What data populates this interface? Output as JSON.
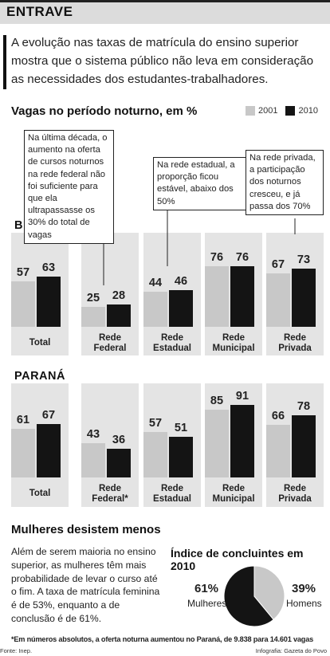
{
  "header": {
    "title": "ENTRAVE"
  },
  "intro": "A evolução nas taxas de matrícula do ensino superior mostra que o sistema público não leva em consideração as necessidades dos estudantes-trabalhadores.",
  "chart_data": {
    "type": "bar",
    "title": "Vagas no período noturno, em %",
    "legend": [
      "2001",
      "2010"
    ],
    "colors": {
      "2001": "#c8c8c8",
      "2010": "#141414"
    },
    "panels": [
      {
        "label": "BRASIL",
        "categories": [
          "Total",
          "Rede Federal",
          "Rede Estadual",
          "Rede Municipal",
          "Rede Privada"
        ],
        "series": [
          {
            "name": "2001",
            "values": [
              57,
              25,
              44,
              76,
              67
            ]
          },
          {
            "name": "2010",
            "values": [
              63,
              28,
              46,
              76,
              73
            ]
          }
        ]
      },
      {
        "label": "PARANÁ",
        "categories": [
          "Total",
          "Rede Federal*",
          "Rede Estadual",
          "Rede Municipal",
          "Rede Privada"
        ],
        "series": [
          {
            "name": "2001",
            "values": [
              61,
              43,
              57,
              85,
              66
            ]
          },
          {
            "name": "2010",
            "values": [
              67,
              36,
              51,
              91,
              78
            ]
          }
        ]
      }
    ],
    "annotations": [
      "Na última década, o aumento na oferta de cursos noturnos na rede federal não foi suficiente para que ela ultrapassasse os 30% do total de vagas",
      "Na rede estadual, a proporção ficou estável, abaixo dos 50%",
      "Na rede privada, a participação dos noturnos cresceu, e já passa dos 70%"
    ]
  },
  "women": {
    "title": "Mulheres desistem menos",
    "text": "Além de serem maioria no ensino superior, as mulheres têm mais probabilidade de levar o curso até o fim. A taxa de matrícula feminina é de 53%, enquanto a de conclusão é de 61%.",
    "pie": {
      "title": "Índice de concluintes em 2010",
      "slices": [
        {
          "label": "Mulheres",
          "pct_text": "61%",
          "value": 61,
          "color": "#141414"
        },
        {
          "label": "Homens",
          "pct_text": "39%",
          "value": 39,
          "color": "#c8c8c8"
        }
      ]
    }
  },
  "footnote": "*Em números absolutos, a oferta noturna aumentou no Paraná, de 9.838 para 14.601 vagas",
  "source": "Fonte: Inep.",
  "credit": "Infografia: Gazeta do Povo"
}
